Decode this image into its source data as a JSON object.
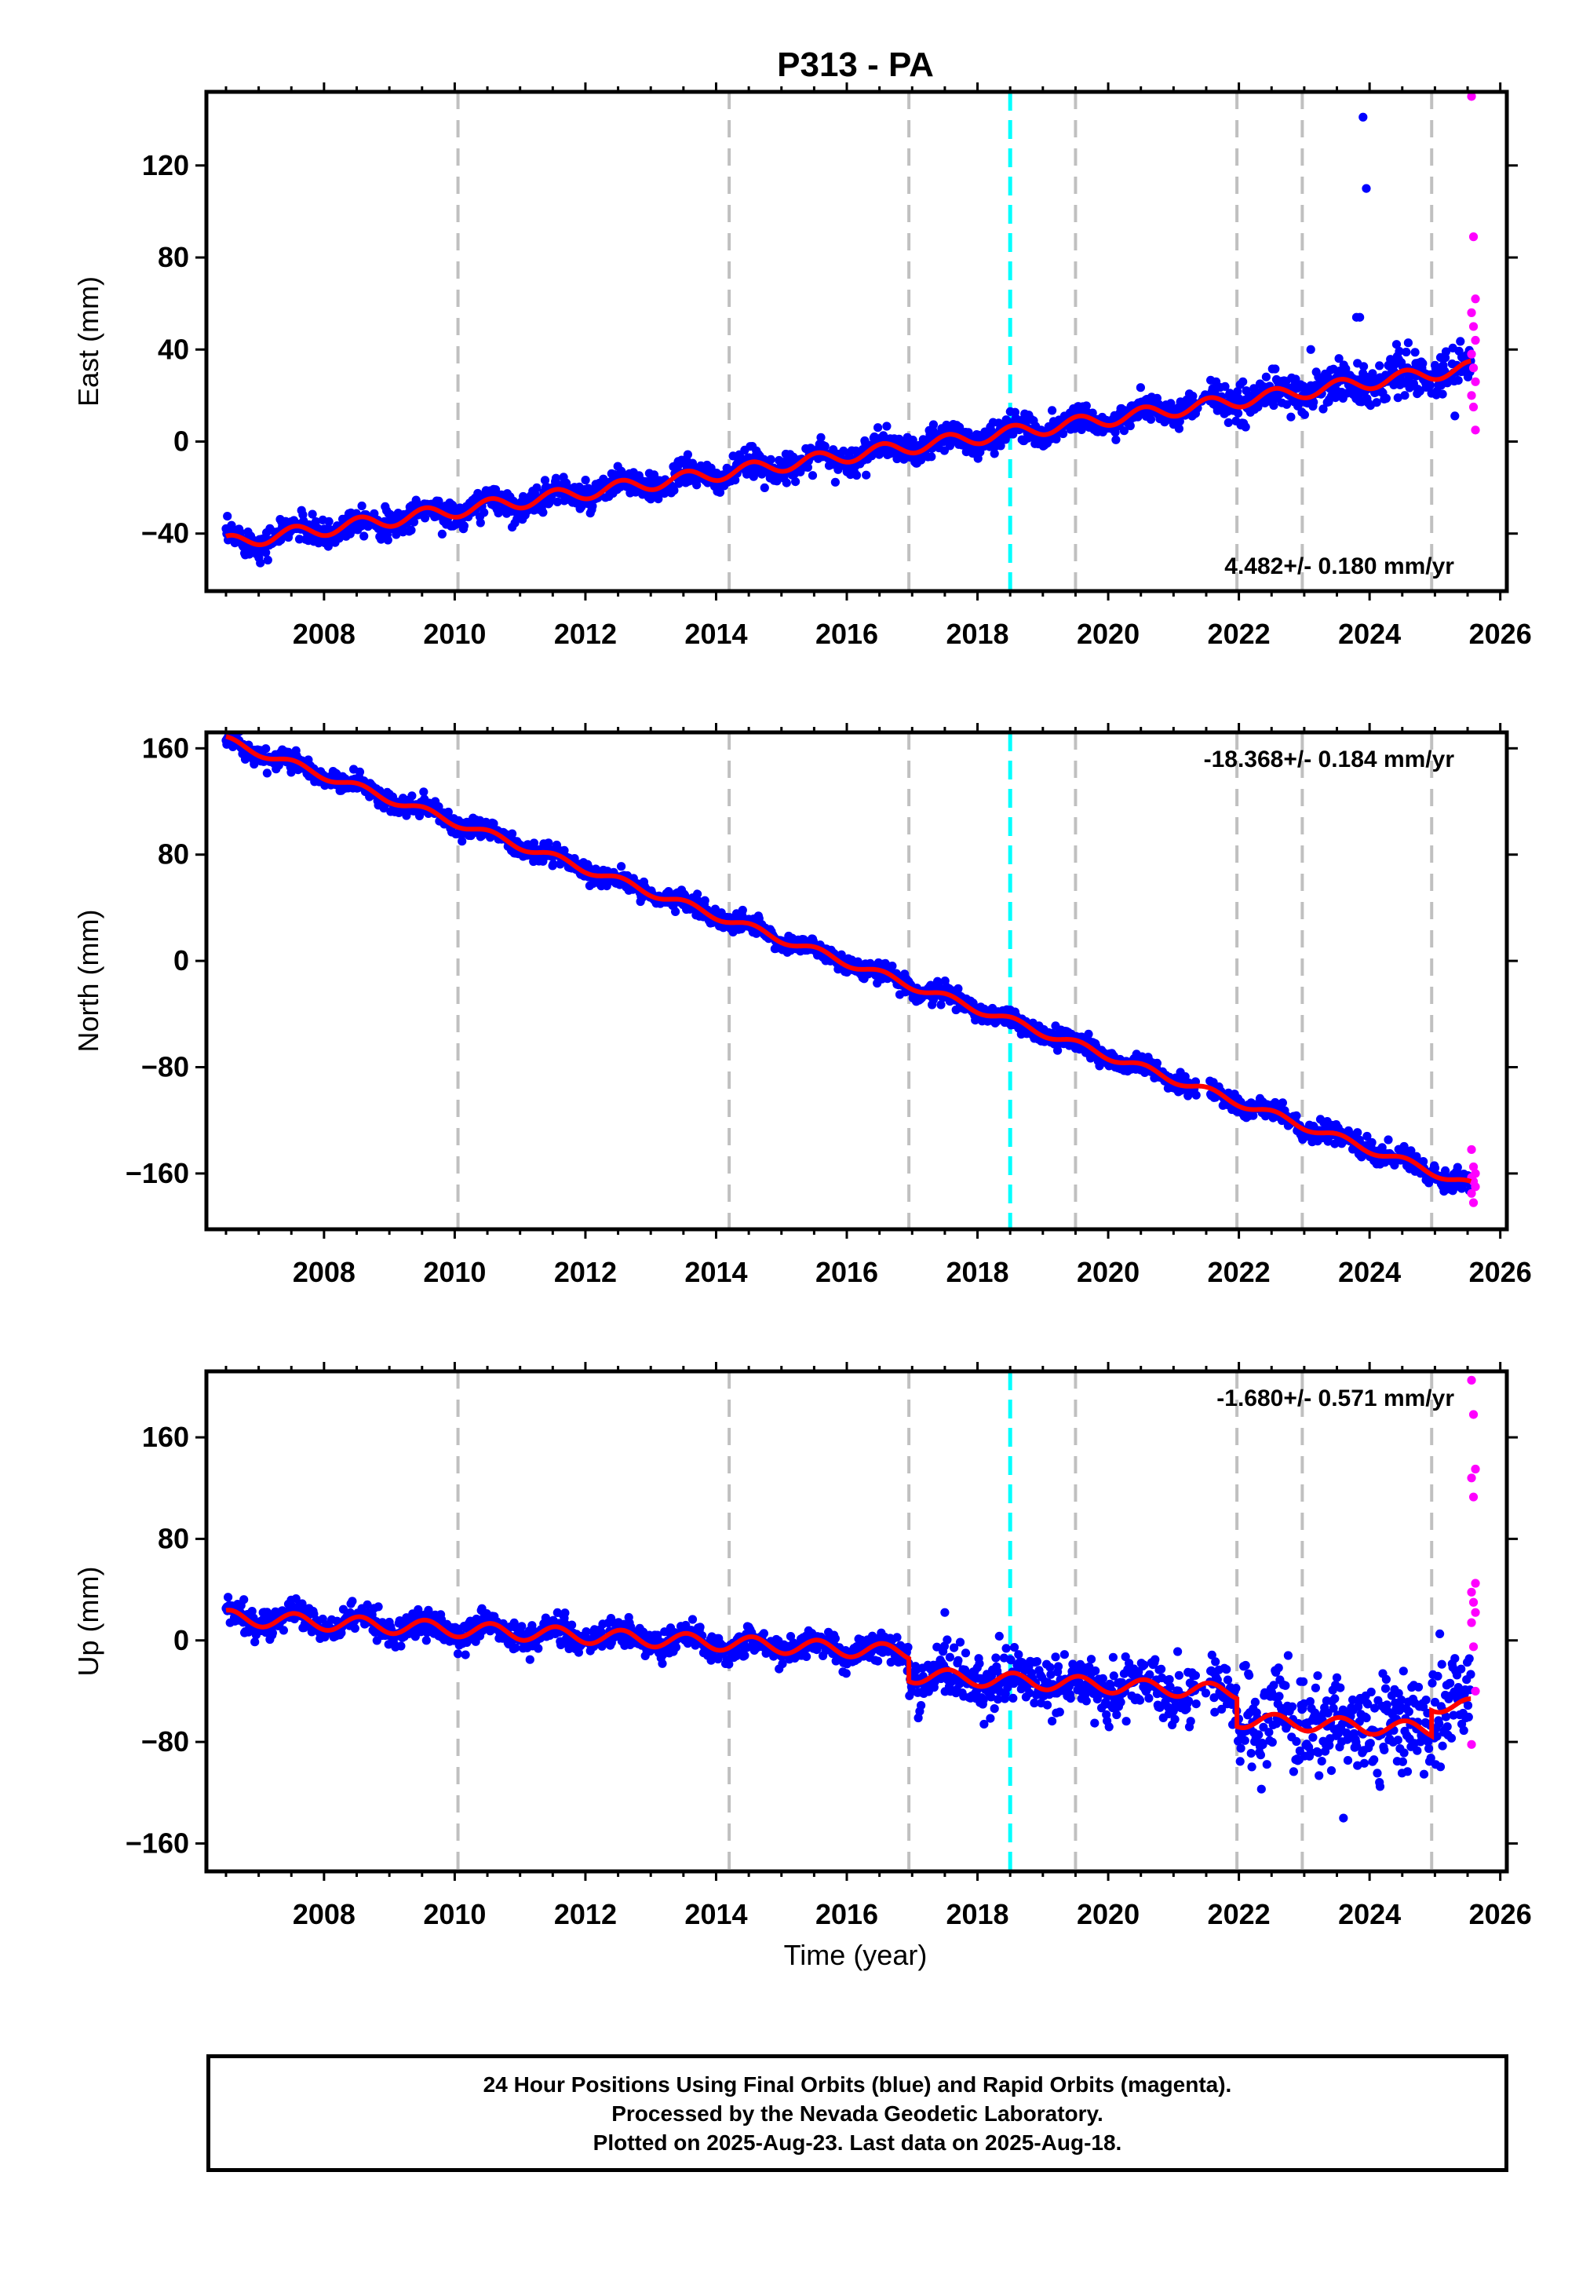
{
  "chart_data": {
    "title": "P313 - PA",
    "xlabel": "Time (year)",
    "xlim": [
      2006.2,
      2026.1
    ],
    "x_ticks": [
      2008,
      2010,
      2012,
      2014,
      2016,
      2018,
      2020,
      2022,
      2024,
      2026
    ],
    "gray_events": [
      2010.05,
      2014.2,
      2016.95,
      2019.5,
      2021.97,
      2022.97,
      2024.95
    ],
    "cyan_event": 2018.5,
    "colors": {
      "final_orbits": "#0000ff",
      "rapid_orbits": "#ff00ff",
      "model_fit": "#ff0000",
      "event_line": "#c0c0c0",
      "antenna_change": "#00ffff"
    },
    "panels": [
      {
        "type": "scatter",
        "component": "east",
        "ylabel": "East (mm)",
        "ylim": [
          -65,
          152
        ],
        "y_ticks": [
          -40,
          0,
          40,
          80,
          120
        ],
        "rate_label": "4.482+/- 0.180 mm/yr",
        "rate_position": "bottom-right",
        "trend": {
          "x": [
            2006.5,
            2025.55
          ],
          "y": [
            -44,
            32
          ]
        },
        "steps": [],
        "outliers": [
          [
            2023.9,
            141
          ],
          [
            2023.95,
            110
          ],
          [
            2023.8,
            54
          ],
          [
            2023.85,
            54
          ],
          [
            2023.1,
            40
          ]
        ],
        "rapid_points": [
          150,
          89,
          62,
          56,
          50,
          44,
          38,
          32,
          26,
          20,
          15,
          5
        ]
      },
      {
        "type": "scatter",
        "component": "north",
        "ylabel": "North (mm)",
        "ylim": [
          -202,
          172
        ],
        "y_ticks": [
          -160,
          -80,
          0,
          80,
          160
        ],
        "rate_label": "-18.368+/- 0.184 mm/yr",
        "rate_position": "top-right",
        "trend": {
          "x": [
            2006.5,
            2025.55
          ],
          "y": [
            166,
            -169
          ]
        },
        "steps": [],
        "outliers": [],
        "rapid_points": [
          -142,
          -155,
          -160,
          -163,
          -166,
          -170,
          -175,
          -182
        ]
      },
      {
        "type": "scatter",
        "component": "up",
        "ylabel": "Up (mm)",
        "ylim": [
          -182,
          212
        ],
        "y_ticks": [
          -160,
          -80,
          0,
          80,
          160
        ],
        "rate_label": "-1.680+/- 0.571 mm/yr",
        "rate_position": "top-right",
        "trend": {
          "x": [
            2006.5,
            2025.55
          ],
          "y": [
            18,
            -32
          ]
        },
        "steps": [
          [
            2016.95,
            -18
          ],
          [
            2021.97,
            -22
          ],
          [
            2024.95,
            20
          ]
        ],
        "outliers": [
          [
            2017.5,
            22
          ],
          [
            2018.1,
            -66
          ],
          [
            2023.6,
            -140
          ]
        ],
        "rapid_points": [
          205,
          178,
          135,
          128,
          113,
          45,
          38,
          30,
          22,
          14,
          -5,
          -40,
          -82
        ]
      }
    ]
  },
  "footer": {
    "line1": "24 Hour Positions Using Final Orbits (blue) and Rapid Orbits (magenta).",
    "line2": "Processed by the Nevada Geodetic Laboratory.",
    "line3": "Plotted on 2025-Aug-23. Last data on 2025-Aug-18."
  }
}
